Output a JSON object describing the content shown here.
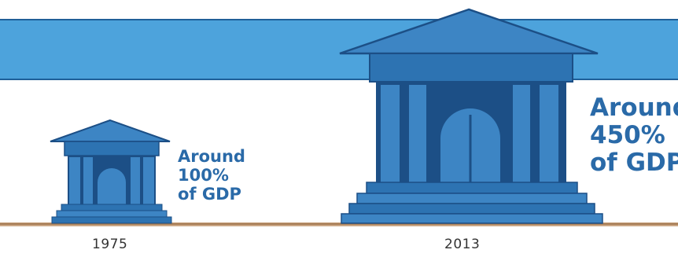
{
  "colors": {
    "band": "#4da3dc",
    "band_edge": "#1f5f99",
    "building_light": "#3d85c4",
    "building_mid": "#2d73b2",
    "building_dark": "#1c4f86",
    "ground": "#b98a5c",
    "label_text": "#2a6aa8",
    "year_text": "#333333"
  },
  "buildings": [
    {
      "id": "small",
      "year": "1975",
      "label": {
        "line1": "Around",
        "line2": "100%",
        "line3": "of GDP"
      },
      "value_percent_of_gdp": 100
    },
    {
      "id": "large",
      "year": "2013",
      "label": {
        "line1": "Around",
        "line2": "450%",
        "line3": "of GDP"
      },
      "value_percent_of_gdp": 450
    }
  ]
}
